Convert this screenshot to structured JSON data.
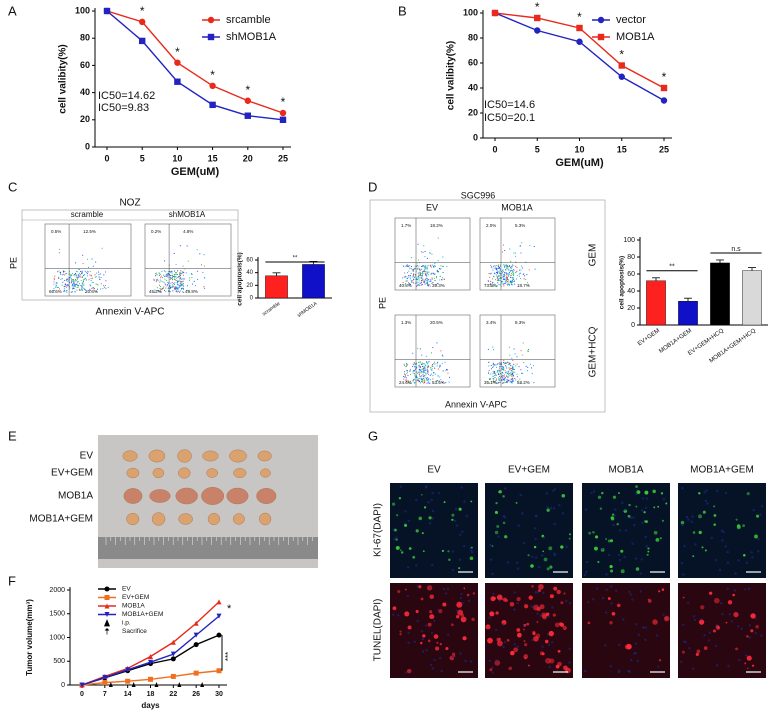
{
  "panel_labels": [
    "A",
    "B",
    "C",
    "D",
    "E",
    "F",
    "G"
  ],
  "chart_data": [
    {
      "type": "line",
      "x_label": "GEM(uM)",
      "y_label": "cell valibity(%)",
      "categories": [
        "0",
        "5",
        "10",
        "15",
        "20",
        "25"
      ],
      "ylim": [
        0,
        100
      ],
      "yticks": [
        0,
        20,
        40,
        60,
        80,
        100
      ],
      "series": [
        {
          "name": "srcamble",
          "color": "#e8291c",
          "marker": "circle",
          "values": [
            100,
            92,
            62,
            45,
            34,
            25
          ]
        },
        {
          "name": "shMOB1A",
          "color": "#2323c0",
          "marker": "square",
          "values": [
            100,
            78,
            48,
            31,
            23,
            20
          ]
        }
      ],
      "significance": [
        null,
        "*",
        "*",
        "*",
        "*",
        "*"
      ],
      "annotations": [
        {
          "text": "IC50=14.62",
          "color": "#e8291c"
        },
        {
          "text": "IC50=9.83",
          "color": "#2323c0"
        }
      ]
    },
    {
      "type": "line",
      "x_label": "GEM(uM)",
      "y_label": "cell valibity(%)",
      "categories": [
        "0",
        "5",
        "10",
        "15",
        "25"
      ],
      "ylim": [
        0,
        100
      ],
      "yticks": [
        0,
        20,
        40,
        60,
        80,
        100
      ],
      "series": [
        {
          "name": "vector",
          "color": "#2323c0",
          "marker": "circle",
          "values": [
            100,
            86,
            77,
            49,
            30
          ]
        },
        {
          "name": "MOB1A",
          "color": "#e8291c",
          "marker": "square",
          "values": [
            100,
            96,
            88,
            58,
            40
          ]
        }
      ],
      "significance": [
        null,
        "*",
        "*",
        "*",
        "*"
      ],
      "annotations": [
        {
          "text": "IC50=14.6",
          "color": "#2323c0"
        },
        {
          "text": "IC50=20.1",
          "color": "#e8291c"
        }
      ]
    },
    {
      "type": "bar",
      "y_label": "cell apoptosis(%)",
      "categories": [
        "scramble",
        "shMOB1A"
      ],
      "values": [
        35,
        53
      ],
      "colors": [
        "#ff2020",
        "#1010c8"
      ],
      "ylim": [
        0,
        60
      ],
      "yticks": [
        0,
        20,
        40,
        60
      ],
      "annotations": [
        "**"
      ]
    },
    {
      "type": "bar",
      "y_label": "cell apoptosis(%)",
      "categories": [
        "EV+GEM",
        "MOB1A+GEM",
        "EV+GEM+HCQ",
        "MOB1A+GEM+HCQ"
      ],
      "values": [
        52,
        28,
        73,
        64
      ],
      "colors": [
        "#ff2020",
        "#1010c8",
        "#000000",
        "#d9d9d9"
      ],
      "ylim": [
        0,
        100
      ],
      "yticks": [
        0,
        20,
        40,
        60,
        80,
        100
      ],
      "annotations": [
        "**",
        "n.s"
      ]
    },
    {
      "type": "line",
      "x_label": "days",
      "y_label": "Tumor volume(mm³)",
      "categories": [
        "0",
        "7",
        "14",
        "18",
        "22",
        "26",
        "30"
      ],
      "ylim": [
        0,
        2000
      ],
      "yticks": [
        0,
        500,
        1000,
        1500,
        2000
      ],
      "series": [
        {
          "name": "EV",
          "color": "#000000",
          "marker": "circle",
          "values": [
            0,
            150,
            300,
            450,
            550,
            850,
            1050
          ]
        },
        {
          "name": "EV+GEM",
          "color": "#f07020",
          "marker": "square",
          "values": [
            0,
            50,
            80,
            120,
            180,
            250,
            300
          ]
        },
        {
          "name": "MOB1A",
          "color": "#e8291c",
          "marker": "triangle",
          "values": [
            0,
            180,
            350,
            600,
            900,
            1300,
            1750
          ]
        },
        {
          "name": "MOB1A+GEM",
          "color": "#2323c0",
          "marker": "triangle-down",
          "values": [
            0,
            160,
            320,
            480,
            650,
            1050,
            1450
          ]
        }
      ],
      "legend_extra": [
        "i.p.",
        "Sacrifice"
      ],
      "annotations": [
        "*",
        "***"
      ]
    }
  ],
  "flow": [
    {
      "title": "NOZ",
      "x_label": "Annexin V-APC",
      "y_label": "PE",
      "columns": [
        "scramble",
        "shMOB1A"
      ],
      "plots": [
        [
          "0.5%",
          "12.5%",
          "66.6%",
          "20.4%"
        ],
        [
          "0.2%",
          "4.8%",
          "45.2%",
          "49.8%"
        ]
      ]
    },
    {
      "title": "SGC996",
      "x_label": "Annexin V-APC",
      "y_label": "PE",
      "columns": [
        "EV",
        "MOB1A"
      ],
      "rows": [
        "GEM",
        "GEM+HCQ"
      ],
      "plots": [
        [
          "1.7%",
          "18.2%",
          "40.8%",
          "39.3%"
        ],
        [
          "2.0%",
          "5.3%",
          "73.9%",
          "18.7%"
        ],
        [
          "1.3%",
          "20.5%",
          "24.6%",
          "53.5%"
        ],
        [
          "3.4%",
          "8.3%",
          "35.1%",
          "53.2%"
        ]
      ]
    }
  ],
  "photo": {
    "rows": [
      "EV",
      "EV+GEM",
      "MOB1A",
      "MOB1A+GEM"
    ]
  },
  "staining": {
    "columns": [
      "EV",
      "EV+GEM",
      "MOB1A",
      "MOB1A+GEM"
    ],
    "rows": [
      "KI-67(DAPI)",
      "TUNEL(DAPI)"
    ]
  }
}
